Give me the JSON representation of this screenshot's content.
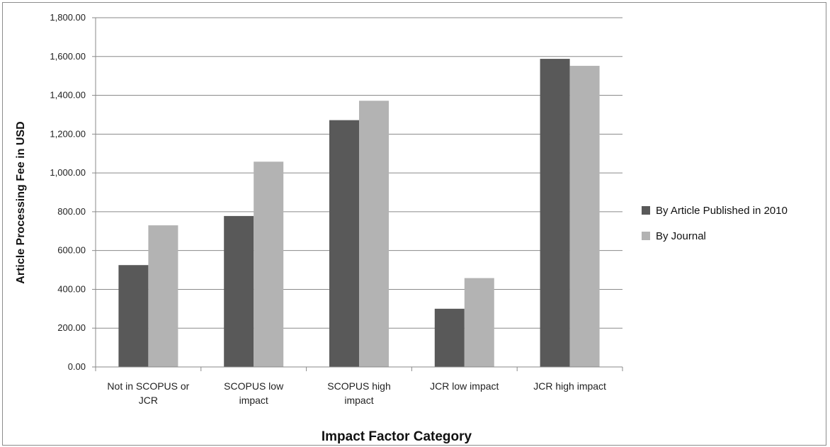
{
  "chart_data": {
    "type": "bar",
    "categories": [
      [
        "Not in SCOPUS or",
        "JCR"
      ],
      [
        "SCOPUS low",
        "impact"
      ],
      [
        "SCOPUS high",
        "impact"
      ],
      [
        "JCR low impact"
      ],
      [
        "JCR high impact"
      ]
    ],
    "series": [
      {
        "name": "By Article Published in 2010",
        "color": "#595959",
        "values": [
          525,
          778,
          1272,
          300,
          1588
        ]
      },
      {
        "name": "By Journal",
        "color": "#b3b3b3",
        "values": [
          730,
          1058,
          1372,
          458,
          1552
        ]
      }
    ],
    "xlabel": "Impact Factor Category",
    "ylabel": "Article Processing Fee in USD",
    "ylim": [
      0,
      1800
    ],
    "yticks": [
      0,
      200,
      400,
      600,
      800,
      1000,
      1200,
      1400,
      1600,
      1800
    ],
    "ytick_labels": [
      "0.00",
      "200.00",
      "400.00",
      "600.00",
      "800.00",
      "1,000.00",
      "1,200.00",
      "1,400.00",
      "1,600.00",
      "1,800.00"
    ],
    "grid": true,
    "legend_position": "right"
  }
}
